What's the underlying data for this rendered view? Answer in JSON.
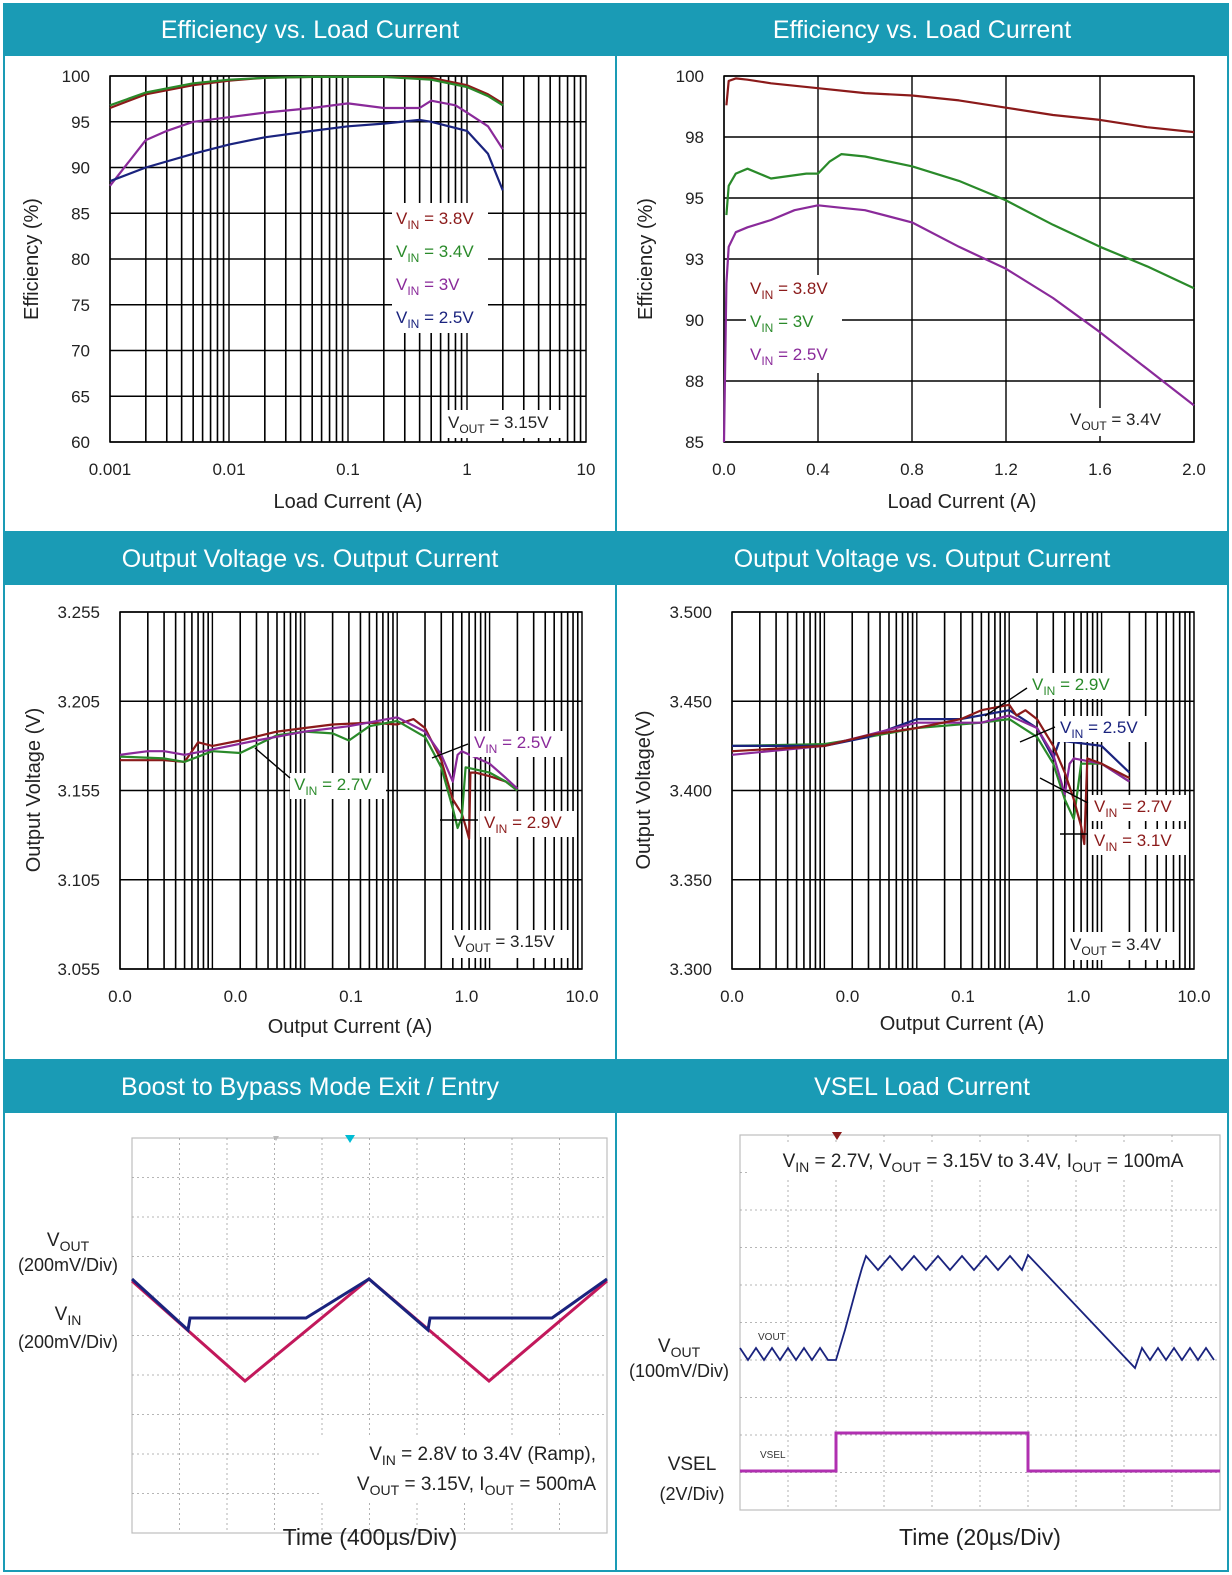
{
  "colors": {
    "header_bg": "#1a9bb5",
    "panel_border": "#1a9bb5",
    "dark_red": "#8b1a1a",
    "green": "#2a8a2a",
    "purple": "#8a2a9a",
    "blue": "#1a237e",
    "magenta": "#c2185b",
    "scope_vsel": "#b030b0"
  },
  "panels": {
    "p1": {
      "title": "Efficiency vs. Load Current",
      "note_main": "V",
      "note_sub": "OUT",
      "note_rest": " = 3.15V",
      "legend": [
        {
          "main": "V",
          "sub": "IN",
          "rest": " = 3.8V",
          "color": "dark_red"
        },
        {
          "main": "V",
          "sub": "IN",
          "rest": " = 3.4V",
          "color": "green"
        },
        {
          "main": "V",
          "sub": "IN",
          "rest": " = 3V",
          "color": "purple"
        },
        {
          "main": "V",
          "sub": "IN",
          "rest": " = 2.5V",
          "color": "blue"
        }
      ]
    },
    "p2": {
      "title": "Efficiency vs. Load Current",
      "note_main": "V",
      "note_sub": "OUT",
      "note_rest": " = 3.4V",
      "legend": [
        {
          "main": "V",
          "sub": "IN",
          "rest": " = 3.8V",
          "color": "dark_red"
        },
        {
          "main": "V",
          "sub": "IN",
          "rest": " = 3V",
          "color": "green"
        },
        {
          "main": "V",
          "sub": "IN",
          "rest": " = 2.5V",
          "color": "purple"
        }
      ]
    },
    "p3": {
      "title": "Output Voltage vs. Output Current",
      "note_main": "V",
      "note_sub": "OUT",
      "note_rest": " = 3.15V",
      "labels": [
        {
          "main": "V",
          "sub": "IN",
          "rest": " = 2.5V",
          "color": "purple"
        },
        {
          "main": "V",
          "sub": "IN",
          "rest": " = 2.7V",
          "color": "green"
        },
        {
          "main": "V",
          "sub": "IN",
          "rest": " = 2.9V",
          "color": "dark_red"
        }
      ]
    },
    "p4": {
      "title": "Output Voltage vs. Output Current",
      "note_main": "V",
      "note_sub": "OUT",
      "note_rest": " = 3.4V",
      "labels": [
        {
          "main": "V",
          "sub": "IN",
          "rest": " = 2.9V",
          "color": "green"
        },
        {
          "main": "V",
          "sub": "IN",
          "rest": " = 2.5V",
          "color": "blue"
        },
        {
          "main": "V",
          "sub": "IN",
          "rest": " = 2.7V",
          "color": "dark_red"
        },
        {
          "main": "V",
          "sub": "IN",
          "rest": " = 3.1V",
          "color": "dark_red"
        }
      ]
    },
    "p5": {
      "title": "Boost to Bypass Mode Exit / Entry",
      "ch1_main": "V",
      "ch1_sub": "OUT",
      "ch1_scale": "(200mV/Div)",
      "ch2_main": "V",
      "ch2_sub": "IN",
      "ch2_scale": "(200mV/Div)",
      "cond1": {
        "main": "V",
        "sub": "IN",
        "rest": " = 2.8V to 3.4V (Ramp),"
      },
      "cond2": [
        {
          "main": "V",
          "sub": "OUT",
          "rest": " = 3.15V, "
        },
        {
          "main": "I",
          "sub": "OUT",
          "rest": " = 500mA"
        }
      ],
      "time": "Time (400µs/Div)"
    },
    "p6": {
      "title": "VSEL Load Current",
      "ch1_main": "V",
      "ch1_sub": "OUT",
      "ch1_scale": "(100mV/Div)",
      "ch2_label": "VSEL",
      "ch2_scale": "(2V/Div)",
      "trace1_tag": "VOUT",
      "trace2_tag": "VSEL",
      "cond": [
        {
          "main": "V",
          "sub": "IN",
          "rest": " = 2.7V, "
        },
        {
          "main": "V",
          "sub": "OUT",
          "rest": " = 3.15V to 3.4V, "
        },
        {
          "main": "I",
          "sub": "OUT",
          "rest": " = 100mA"
        }
      ],
      "time": "Time (20µs/Div)"
    }
  },
  "chart_data": [
    {
      "type": "line",
      "title": "Efficiency vs. Load Current",
      "xlabel": "Load Current (A)",
      "ylabel": "Efficiency (%)",
      "xscale": "log",
      "xlim": [
        0.001,
        10
      ],
      "ylim": [
        60,
        100
      ],
      "xticks": [
        "0.001",
        "0.01",
        "0.1",
        "1",
        "10"
      ],
      "yticks": [
        "60",
        "65",
        "70",
        "75",
        "80",
        "85",
        "90",
        "95",
        "100"
      ],
      "grid": true,
      "series": [
        {
          "name": "VIN = 3.8V",
          "color": "dark_red",
          "x": [
            0.001,
            0.002,
            0.005,
            0.01,
            0.02,
            0.05,
            0.1,
            0.2,
            0.5,
            1,
            1.5,
            2
          ],
          "y": [
            96.5,
            98,
            99,
            99.5,
            99.8,
            99.9,
            99.9,
            99.9,
            99.8,
            99,
            98,
            97
          ]
        },
        {
          "name": "VIN = 3.4V",
          "color": "green",
          "x": [
            0.001,
            0.002,
            0.005,
            0.01,
            0.02,
            0.05,
            0.1,
            0.2,
            0.5,
            1,
            1.5,
            2
          ],
          "y": [
            96.8,
            98.2,
            99.2,
            99.6,
            99.8,
            99.9,
            99.9,
            99.9,
            99.6,
            98.8,
            97.8,
            96.8
          ]
        },
        {
          "name": "VIN = 3V",
          "color": "purple",
          "x": [
            0.001,
            0.002,
            0.003,
            0.005,
            0.01,
            0.02,
            0.05,
            0.1,
            0.2,
            0.4,
            0.5,
            0.8,
            1,
            1.5,
            2
          ],
          "y": [
            88,
            93,
            94,
            95,
            95.5,
            96,
            96.5,
            97,
            96.5,
            96.5,
            97.3,
            96.8,
            96,
            94.5,
            92
          ]
        },
        {
          "name": "VIN = 2.5V",
          "color": "blue",
          "x": [
            0.001,
            0.002,
            0.005,
            0.01,
            0.02,
            0.05,
            0.1,
            0.2,
            0.4,
            0.5,
            1,
            1.5,
            2
          ],
          "y": [
            88.5,
            90,
            91.5,
            92.5,
            93.3,
            94,
            94.5,
            94.8,
            95.2,
            95,
            94,
            91.5,
            87.5
          ]
        }
      ],
      "annotation": "VOUT = 3.15V"
    },
    {
      "type": "line",
      "title": "Efficiency vs. Load Current",
      "xlabel": "Load Current (A)",
      "ylabel": "Efficiency (%)",
      "xlim": [
        0,
        2
      ],
      "ylim": [
        85,
        100
      ],
      "xticks": [
        "0.0",
        "0.4",
        "0.8",
        "1.2",
        "1.6",
        "2.0"
      ],
      "yticks": [
        "85",
        "88",
        "90",
        "93",
        "95",
        "98",
        "100"
      ],
      "grid": true,
      "series": [
        {
          "name": "VIN = 3.8V",
          "color": "dark_red",
          "x": [
            0.01,
            0.02,
            0.05,
            0.1,
            0.2,
            0.4,
            0.6,
            0.8,
            1.0,
            1.2,
            1.4,
            1.6,
            1.8,
            2.0
          ],
          "y": [
            98.8,
            99.8,
            99.9,
            99.85,
            99.7,
            99.5,
            99.3,
            99.2,
            99.0,
            98.7,
            98.4,
            98.2,
            97.9,
            97.7
          ]
        },
        {
          "name": "VIN = 3V",
          "color": "green",
          "x": [
            0.01,
            0.02,
            0.05,
            0.1,
            0.2,
            0.35,
            0.4,
            0.45,
            0.5,
            0.6,
            0.8,
            1.0,
            1.2,
            1.4,
            1.6,
            1.8,
            2.0
          ],
          "y": [
            94.3,
            95.5,
            96.0,
            96.2,
            95.8,
            96.0,
            96.0,
            96.5,
            96.8,
            96.7,
            96.3,
            95.7,
            94.9,
            93.9,
            93.0,
            92.2,
            91.3
          ]
        },
        {
          "name": "VIN = 2.5V",
          "color": "purple",
          "x": [
            0.0,
            0.01,
            0.02,
            0.05,
            0.1,
            0.2,
            0.3,
            0.4,
            0.5,
            0.6,
            0.8,
            1.0,
            1.2,
            1.4,
            1.6,
            1.8,
            2.0
          ],
          "y": [
            85,
            91.5,
            93.0,
            93.6,
            93.8,
            94.1,
            94.5,
            94.7,
            94.6,
            94.5,
            94.0,
            93.0,
            92.1,
            90.9,
            89.5,
            88.0,
            86.5
          ]
        }
      ],
      "annotation": "VOUT = 3.4V"
    },
    {
      "type": "line",
      "title": "Output Voltage vs. Output Current",
      "xlabel": "Output Current (A)",
      "ylabel": "Output Voltage (V)",
      "xscale": "log",
      "xlim": [
        0.0001,
        10
      ],
      "ylim": [
        3.055,
        3.255
      ],
      "xticks": [
        "0.0",
        "0.0",
        "0.1",
        "1.0",
        "10.0"
      ],
      "yticks": [
        "3.055",
        "3.105",
        "3.155",
        "3.205",
        "3.255"
      ],
      "grid": true,
      "series": [
        {
          "name": "VIN = 2.9V",
          "color": "dark_red",
          "x": [
            0.0001,
            0.0003,
            0.0005,
            0.0007,
            0.001,
            0.002,
            0.005,
            0.01,
            0.02,
            0.05,
            0.1,
            0.15,
            0.2,
            0.3,
            0.35,
            0.4,
            0.5,
            0.55,
            0.6,
            0.62,
            0.7,
            1,
            1.5,
            2
          ],
          "y": [
            3.172,
            3.172,
            3.171,
            3.182,
            3.18,
            3.183,
            3.188,
            3.19,
            3.192,
            3.193,
            3.192,
            3.195,
            3.19,
            3.172,
            3.16,
            3.15,
            3.142,
            3.135,
            3.128,
            3.165,
            3.165,
            3.163,
            3.16,
            3.155
          ]
        },
        {
          "name": "VIN = 2.7V",
          "color": "green",
          "x": [
            0.0001,
            0.0003,
            0.0005,
            0.001,
            0.002,
            0.005,
            0.01,
            0.02,
            0.03,
            0.05,
            0.1,
            0.2,
            0.3,
            0.4,
            0.45,
            0.5,
            0.55,
            1,
            1.5,
            2
          ],
          "y": [
            3.174,
            3.173,
            3.171,
            3.177,
            3.176,
            3.186,
            3.188,
            3.187,
            3.183,
            3.191,
            3.194,
            3.185,
            3.168,
            3.145,
            3.134,
            3.14,
            3.168,
            3.165,
            3.16,
            3.155
          ]
        },
        {
          "name": "VIN = 2.5V",
          "color": "purple",
          "x": [
            0.0001,
            0.0002,
            0.0003,
            0.0005,
            0.001,
            0.003,
            0.01,
            0.03,
            0.1,
            0.2,
            0.3,
            0.4,
            0.45,
            0.5,
            1,
            1.5,
            2
          ],
          "y": [
            3.175,
            3.177,
            3.177,
            3.175,
            3.178,
            3.183,
            3.188,
            3.191,
            3.196,
            3.188,
            3.175,
            3.16,
            3.175,
            3.177,
            3.17,
            3.162,
            3.156
          ]
        }
      ],
      "annotation": "VOUT = 3.15V"
    },
    {
      "type": "line",
      "title": "Output Voltage vs. Output Current",
      "xlabel": "Output Current (A)",
      "ylabel": "Output Voltage(V)",
      "xscale": "log",
      "xlim": [
        0.0001,
        10
      ],
      "ylim": [
        3.3,
        3.5
      ],
      "xticks": [
        "0.0",
        "0.0",
        "0.1",
        "1.0",
        "10.0"
      ],
      "yticks": [
        "3.300",
        "3.350",
        "3.400",
        "3.450",
        "3.500"
      ],
      "grid": true,
      "series": [
        {
          "name": "VIN = 2.9V",
          "color": "green",
          "x": [
            0.0001,
            0.001,
            0.003,
            0.01,
            0.05,
            0.1,
            0.2,
            0.3,
            0.4,
            0.5,
            0.6,
            1,
            2
          ],
          "y": [
            3.425,
            3.426,
            3.43,
            3.435,
            3.438,
            3.44,
            3.43,
            3.415,
            3.395,
            3.384,
            3.415,
            3.415,
            3.405
          ]
        },
        {
          "name": "VIN = 2.5V",
          "color": "blue",
          "x": [
            0.0001,
            0.001,
            0.003,
            0.01,
            0.03,
            0.1,
            0.2,
            0.3,
            0.35,
            1,
            2
          ],
          "y": [
            3.425,
            3.425,
            3.43,
            3.44,
            3.44,
            3.445,
            3.435,
            3.418,
            3.428,
            3.425,
            3.41
          ]
        },
        {
          "name": "VIN = 2.7V",
          "color": "purple",
          "x": [
            0.0001,
            0.001,
            0.01,
            0.05,
            0.1,
            0.2,
            0.3,
            0.4,
            0.45,
            0.5,
            1,
            2
          ],
          "y": [
            3.42,
            3.425,
            3.438,
            3.438,
            3.442,
            3.435,
            3.42,
            3.398,
            3.415,
            3.418,
            3.415,
            3.405
          ]
        },
        {
          "name": "VIN = 3.1V",
          "color": "dark_red",
          "x": [
            0.0001,
            0.001,
            0.003,
            0.01,
            0.03,
            0.05,
            0.1,
            0.12,
            0.15,
            0.2,
            0.3,
            0.4,
            0.5,
            0.6,
            0.65,
            0.7,
            1,
            2
          ],
          "y": [
            3.422,
            3.425,
            3.431,
            3.435,
            3.44,
            3.445,
            3.448,
            3.442,
            3.445,
            3.44,
            3.425,
            3.41,
            3.395,
            3.38,
            3.37,
            3.418,
            3.415,
            3.407
          ]
        }
      ],
      "annotation": "VOUT = 3.4V"
    }
  ]
}
